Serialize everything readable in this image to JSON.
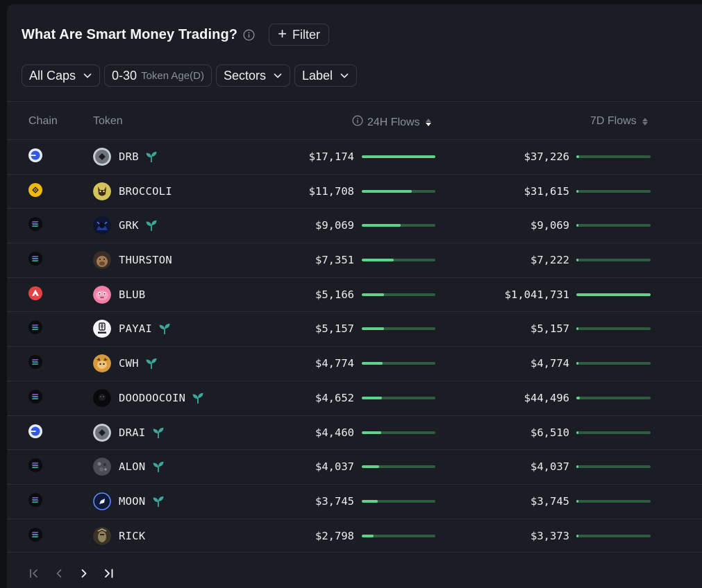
{
  "header": {
    "title": "What Are Smart Money Trading?",
    "filter_label": "Filter"
  },
  "chips": {
    "caps": "All Caps",
    "age_value": "0-30",
    "age_label": "Token Age(D)",
    "sectors": "Sectors",
    "label": "Label"
  },
  "columns": {
    "chain": "Chain",
    "token": "Token",
    "flows_24h": "24H Flows",
    "flows_7d": "7D Flows"
  },
  "colors": {
    "bar_fill": "#5fd38a",
    "bar_track": "#2f5c3e",
    "sprout": "#3aa89a"
  },
  "rows": [
    {
      "chain": "base",
      "token": "DRB",
      "avatar": "diamond-gray",
      "new": true,
      "flow_24h": "$17,174",
      "fill_24h": 1.0,
      "flow_7d": "$37,226",
      "fill_7d": 0.036
    },
    {
      "chain": "bnb",
      "token": "BROCCOLI",
      "avatar": "dog",
      "new": false,
      "flow_24h": "$11,708",
      "fill_24h": 0.68,
      "flow_7d": "$31,615",
      "fill_7d": 0.03
    },
    {
      "chain": "solana",
      "token": "GRK",
      "avatar": "dark-blue",
      "new": true,
      "flow_24h": "$9,069",
      "fill_24h": 0.53,
      "flow_7d": "$9,069",
      "fill_7d": 0.009
    },
    {
      "chain": "solana",
      "token": "THURSTON",
      "avatar": "capybara",
      "new": false,
      "flow_24h": "$7,351",
      "fill_24h": 0.43,
      "flow_7d": "$7,222",
      "fill_7d": 0.007
    },
    {
      "chain": "avalanche",
      "token": "BLUB",
      "avatar": "pink-fish",
      "new": false,
      "flow_24h": "$5,166",
      "fill_24h": 0.3,
      "flow_7d": "$1,041,731",
      "fill_7d": 1.0
    },
    {
      "chain": "solana",
      "token": "PAYAI",
      "avatar": "payai",
      "new": true,
      "flow_24h": "$5,157",
      "fill_24h": 0.3,
      "flow_7d": "$5,157",
      "fill_7d": 0.005
    },
    {
      "chain": "solana",
      "token": "CWH",
      "avatar": "orange-cat",
      "new": true,
      "flow_24h": "$4,774",
      "fill_24h": 0.28,
      "flow_7d": "$4,774",
      "fill_7d": 0.005
    },
    {
      "chain": "solana",
      "token": "DOODOOCOIN",
      "avatar": "black-dark",
      "new": true,
      "flow_24h": "$4,652",
      "fill_24h": 0.27,
      "flow_7d": "$44,496",
      "fill_7d": 0.043
    },
    {
      "chain": "base",
      "token": "DRAI",
      "avatar": "diamond-gray",
      "new": true,
      "flow_24h": "$4,460",
      "fill_24h": 0.26,
      "flow_7d": "$6,510",
      "fill_7d": 0.006
    },
    {
      "chain": "solana",
      "token": "ALON",
      "avatar": "gray-texture",
      "new": true,
      "flow_24h": "$4,037",
      "fill_24h": 0.235,
      "flow_7d": "$4,037",
      "fill_7d": 0.004
    },
    {
      "chain": "solana",
      "token": "MOON",
      "avatar": "rocket",
      "new": true,
      "flow_24h": "$3,745",
      "fill_24h": 0.218,
      "flow_7d": "$3,745",
      "fill_7d": 0.004
    },
    {
      "chain": "solana",
      "token": "RICK",
      "avatar": "rick",
      "new": false,
      "flow_24h": "$2,798",
      "fill_24h": 0.163,
      "flow_7d": "$3,373",
      "fill_7d": 0.003
    }
  ],
  "pager": {
    "first": "first-page-icon",
    "prev": "prev-page-icon",
    "next": "next-page-icon",
    "last": "last-page-icon"
  }
}
